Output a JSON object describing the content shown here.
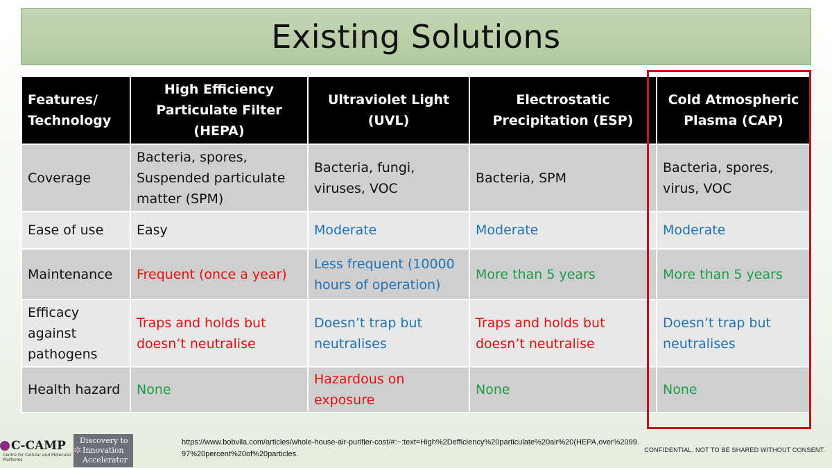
{
  "title": "Existing Solutions",
  "table": {
    "headers": [
      "Features/ Technology",
      "High Efficiency Particulate Filter (HEPA)",
      "Ultraviolet Light (UVL)",
      "Electrostatic Precipitation (ESP)",
      "Cold Atmospheric Plasma (CAP)"
    ],
    "rows": [
      {
        "feature": "Coverage",
        "hepa": "Bacteria, spores, Suspended particulate matter (SPM)",
        "uvl": "Bacteria, fungi, viruses, VOC",
        "esp": "Bacteria, SPM",
        "cap": "Bacteria, spores, virus, VOC"
      },
      {
        "feature": "Ease of use",
        "hepa": "Easy",
        "uvl": "Moderate",
        "esp": "Moderate",
        "cap": "Moderate"
      },
      {
        "feature": "Maintenance",
        "hepa": "Frequent (once a year)",
        "uvl": "Less frequent (10000 hours of operation)",
        "esp": "More than 5 years",
        "cap": "More than 5 years"
      },
      {
        "feature": "Efficacy against pathogens",
        "hepa": "Traps and holds but doesn’t neutralise",
        "uvl": "Doesn’t trap but neutralises",
        "esp": "Traps and holds but doesn’t neutralise",
        "cap": "Doesn’t trap but neutralises"
      },
      {
        "feature": "Health hazard",
        "hepa": "None",
        "uvl": "Hazardous on exposure",
        "esp": "None",
        "cap": "None"
      }
    ]
  },
  "colors": {
    "blue": "#1f73b7",
    "red": "#e8100f",
    "green": "#1e9b4b",
    "highlight_border": "#c8101a",
    "title_bar": "#b8cda6"
  },
  "footer": {
    "logo_name": "C-CAMP",
    "logo_subtitle": "Centre for Cellular and Molecular Platforms",
    "accelerator_lines": [
      "Discovery to",
      "Innovation",
      "Accelerator"
    ],
    "source_url": "https://www.bobvila.com/articles/whole-house-air-purifier-cost/#:~:text=High%2Defficiency%20particulate%20air%20(HEPA,over%2099.97%20percent%20of%20particles.",
    "confidential": "CONFIDENTIAL. NOT TO BE SHARED WITHOUT CONSENT."
  }
}
